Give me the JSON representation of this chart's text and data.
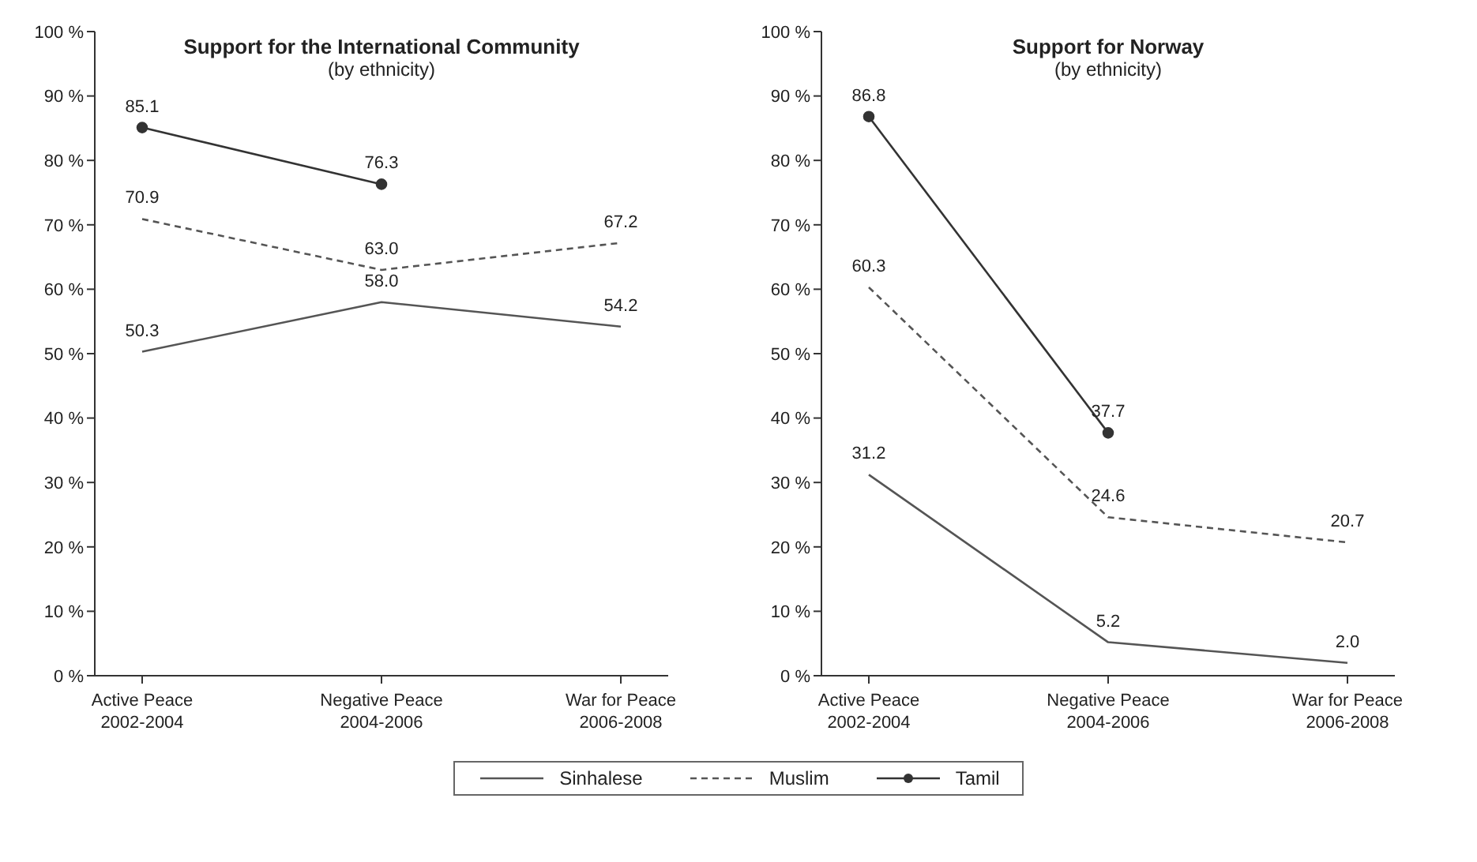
{
  "chart_data": [
    {
      "type": "line",
      "title": "Support for the International Community",
      "subtitle": "(by ethnicity)",
      "categories": [
        "Active Peace\n2002-2004",
        "Negative Peace\n2004-2006",
        "War for Peace\n2006-2008"
      ],
      "ylim": [
        0,
        100
      ],
      "yticks": [
        {
          "value": 0,
          "label": "0 %"
        },
        {
          "value": 10,
          "label": "10 %"
        },
        {
          "value": 20,
          "label": "20 %"
        },
        {
          "value": 30,
          "label": "30 %"
        },
        {
          "value": 40,
          "label": "40 %"
        },
        {
          "value": 50,
          "label": "50 %"
        },
        {
          "value": 60,
          "label": "60 %"
        },
        {
          "value": 70,
          "label": "70 %"
        },
        {
          "value": 80,
          "label": "80 %"
        },
        {
          "value": 90,
          "label": "90 %"
        },
        {
          "value": 100,
          "label": "100 %"
        }
      ],
      "grid": false,
      "legend": "bottom",
      "series": [
        {
          "name": "Sinhalese",
          "color": "#555555",
          "values": [
            50.3,
            58.0,
            54.2
          ],
          "value_labels": [
            "50.3",
            "58.0",
            "54.2"
          ],
          "line_style": "solid",
          "marker": "none"
        },
        {
          "name": "Muslim",
          "color": "#555555",
          "values": [
            70.9,
            63.0,
            67.2
          ],
          "value_labels": [
            "70.9",
            "63.0",
            "67.2"
          ],
          "line_style": "dashed",
          "marker": "none"
        },
        {
          "name": "Tamil",
          "color": "#333333",
          "values": [
            85.1,
            76.3,
            null
          ],
          "value_labels": [
            "85.1",
            "76.3",
            null
          ],
          "line_style": "solid",
          "marker": "circle"
        }
      ]
    },
    {
      "type": "line",
      "title": "Support for Norway",
      "subtitle": "(by ethnicity)",
      "categories": [
        "Active Peace\n2002-2004",
        "Negative Peace\n2004-2006",
        "War for Peace\n2006-2008"
      ],
      "ylim": [
        0,
        100
      ],
      "yticks": [
        {
          "value": 0,
          "label": "0 %"
        },
        {
          "value": 10,
          "label": "10 %"
        },
        {
          "value": 20,
          "label": "20 %"
        },
        {
          "value": 30,
          "label": "30 %"
        },
        {
          "value": 40,
          "label": "40 %"
        },
        {
          "value": 50,
          "label": "50 %"
        },
        {
          "value": 60,
          "label": "60 %"
        },
        {
          "value": 70,
          "label": "70 %"
        },
        {
          "value": 80,
          "label": "80 %"
        },
        {
          "value": 90,
          "label": "90 %"
        },
        {
          "value": 100,
          "label": "100 %"
        }
      ],
      "grid": false,
      "series": [
        {
          "color": "#555555",
          "values": [
            31.2,
            5.2,
            2.0
          ],
          "value_labels": [
            "31.2",
            "5.2",
            "2.0"
          ],
          "line_style": "solid",
          "marker": "none"
        },
        {
          "color": "#555555",
          "values": [
            60.3,
            24.6,
            20.7
          ],
          "value_labels": [
            "60.3",
            "24.6",
            "20.7"
          ],
          "line_style": "dashed",
          "marker": "none"
        },
        {
          "color": "#333333",
          "values": [
            86.8,
            37.7,
            null
          ],
          "value_labels": [
            "86.8",
            "37.7",
            null
          ],
          "line_style": "solid",
          "marker": "circle"
        }
      ]
    }
  ]
}
